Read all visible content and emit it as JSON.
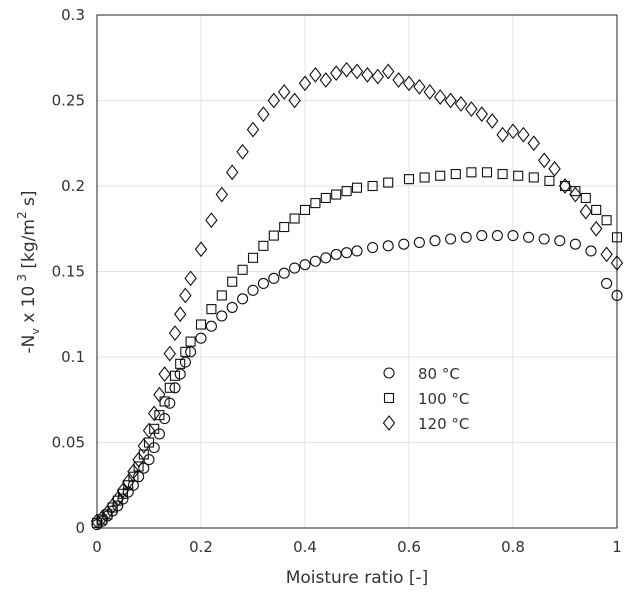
{
  "chart_data": {
    "type": "scatter",
    "title": "",
    "xlabel": "Moisture ratio [-]",
    "ylabel_parts": {
      "main": "-N",
      "sub": "v",
      "mid": " x 10",
      "sup": "3",
      "unit": " [kg/m",
      "unit_sup": "2",
      "unit_end": " s]"
    },
    "xlim": [
      0,
      1
    ],
    "ylim": [
      0,
      0.3
    ],
    "xticks": [
      "0",
      "0.2",
      "0.4",
      "0.6",
      "0.8",
      "1"
    ],
    "yticks": [
      "0",
      "0.05",
      "0.1",
      "0.15",
      "0.2",
      "0.25",
      "0.3"
    ],
    "grid": true,
    "legend_position": "center-right",
    "series": [
      {
        "name": "80 °C",
        "marker": "circle",
        "x": [
          0,
          0.01,
          0.02,
          0.03,
          0.04,
          0.05,
          0.06,
          0.07,
          0.08,
          0.09,
          0.1,
          0.11,
          0.12,
          0.13,
          0.14,
          0.15,
          0.16,
          0.17,
          0.18,
          0.2,
          0.22,
          0.24,
          0.26,
          0.28,
          0.3,
          0.32,
          0.34,
          0.36,
          0.38,
          0.4,
          0.42,
          0.44,
          0.46,
          0.48,
          0.5,
          0.53,
          0.56,
          0.59,
          0.62,
          0.65,
          0.68,
          0.71,
          0.74,
          0.77,
          0.8,
          0.83,
          0.86,
          0.89,
          0.92,
          0.95,
          0.98,
          1.0
        ],
        "y": [
          0.002,
          0.004,
          0.007,
          0.01,
          0.013,
          0.017,
          0.021,
          0.025,
          0.03,
          0.035,
          0.04,
          0.047,
          0.055,
          0.064,
          0.073,
          0.082,
          0.09,
          0.097,
          0.103,
          0.111,
          0.118,
          0.124,
          0.129,
          0.134,
          0.139,
          0.143,
          0.146,
          0.149,
          0.152,
          0.154,
          0.156,
          0.158,
          0.16,
          0.161,
          0.162,
          0.164,
          0.165,
          0.166,
          0.167,
          0.168,
          0.169,
          0.17,
          0.171,
          0.171,
          0.171,
          0.17,
          0.169,
          0.168,
          0.166,
          0.162,
          0.143,
          0.136
        ]
      },
      {
        "name": "100 °C",
        "marker": "square",
        "x": [
          0,
          0.01,
          0.02,
          0.03,
          0.04,
          0.05,
          0.06,
          0.07,
          0.08,
          0.09,
          0.1,
          0.11,
          0.12,
          0.13,
          0.14,
          0.15,
          0.16,
          0.17,
          0.18,
          0.2,
          0.22,
          0.24,
          0.26,
          0.28,
          0.3,
          0.32,
          0.34,
          0.36,
          0.38,
          0.4,
          0.42,
          0.44,
          0.46,
          0.48,
          0.5,
          0.53,
          0.56,
          0.6,
          0.63,
          0.66,
          0.69,
          0.72,
          0.75,
          0.78,
          0.81,
          0.84,
          0.87,
          0.9,
          0.92,
          0.94,
          0.96,
          0.98,
          1.0
        ],
        "y": [
          0.003,
          0.005,
          0.008,
          0.012,
          0.016,
          0.02,
          0.025,
          0.03,
          0.036,
          0.043,
          0.05,
          0.058,
          0.066,
          0.074,
          0.082,
          0.089,
          0.096,
          0.103,
          0.109,
          0.119,
          0.128,
          0.136,
          0.144,
          0.151,
          0.158,
          0.165,
          0.171,
          0.176,
          0.181,
          0.186,
          0.19,
          0.193,
          0.195,
          0.197,
          0.199,
          0.2,
          0.202,
          0.204,
          0.205,
          0.206,
          0.207,
          0.208,
          0.208,
          0.207,
          0.206,
          0.205,
          0.203,
          0.2,
          0.197,
          0.193,
          0.186,
          0.18,
          0.17
        ]
      },
      {
        "name": "120 °C",
        "marker": "diamond",
        "x": [
          0,
          0.01,
          0.02,
          0.03,
          0.04,
          0.05,
          0.06,
          0.07,
          0.08,
          0.09,
          0.1,
          0.11,
          0.12,
          0.13,
          0.14,
          0.15,
          0.16,
          0.17,
          0.18,
          0.2,
          0.22,
          0.24,
          0.26,
          0.28,
          0.3,
          0.32,
          0.34,
          0.36,
          0.38,
          0.4,
          0.42,
          0.44,
          0.46,
          0.48,
          0.5,
          0.52,
          0.54,
          0.56,
          0.58,
          0.6,
          0.62,
          0.64,
          0.66,
          0.68,
          0.7,
          0.72,
          0.74,
          0.76,
          0.78,
          0.8,
          0.82,
          0.84,
          0.86,
          0.88,
          0.9,
          0.92,
          0.94,
          0.96,
          0.98,
          1.0
        ],
        "y": [
          0.004,
          0.006,
          0.009,
          0.013,
          0.017,
          0.022,
          0.027,
          0.033,
          0.04,
          0.048,
          0.057,
          0.067,
          0.078,
          0.09,
          0.102,
          0.114,
          0.125,
          0.136,
          0.146,
          0.163,
          0.18,
          0.195,
          0.208,
          0.22,
          0.233,
          0.242,
          0.25,
          0.255,
          0.25,
          0.26,
          0.265,
          0.262,
          0.266,
          0.268,
          0.267,
          0.265,
          0.264,
          0.267,
          0.262,
          0.26,
          0.258,
          0.255,
          0.252,
          0.25,
          0.248,
          0.245,
          0.242,
          0.238,
          0.23,
          0.232,
          0.23,
          0.225,
          0.215,
          0.21,
          0.2,
          0.195,
          0.185,
          0.175,
          0.16,
          0.155
        ]
      }
    ]
  }
}
